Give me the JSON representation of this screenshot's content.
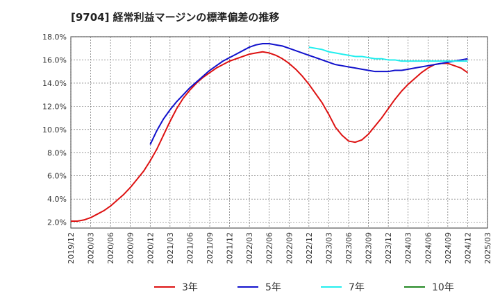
{
  "chart_data": {
    "type": "line",
    "title": "[9704]  経常利益マージンの標準偏差の推移",
    "xlabel": "",
    "ylabel": "",
    "ylim": [
      1.5,
      18.0
    ],
    "y_ticks": [
      "2.0%",
      "4.0%",
      "6.0%",
      "8.0%",
      "10.0%",
      "12.0%",
      "14.0%",
      "16.0%",
      "18.0%"
    ],
    "y_tick_values": [
      2,
      4,
      6,
      8,
      10,
      12,
      14,
      16,
      18
    ],
    "x_ticks": [
      "2019/12",
      "2020/03",
      "2020/06",
      "2020/09",
      "2020/12",
      "2021/03",
      "2021/06",
      "2021/09",
      "2021/12",
      "2022/03",
      "2022/06",
      "2022/09",
      "2022/12",
      "2023/03",
      "2023/06",
      "2023/09",
      "2023/12",
      "2024/03",
      "2024/06",
      "2024/09",
      "2024/12",
      "2025/03"
    ],
    "grid": true,
    "legend_position": "bottom",
    "series": [
      {
        "name": "3年",
        "color": "#dd1111",
        "points": [
          [
            "2019/12",
            2.1
          ],
          [
            "2020/01",
            2.1
          ],
          [
            "2020/02",
            2.2
          ],
          [
            "2020/03",
            2.4
          ],
          [
            "2020/04",
            2.7
          ],
          [
            "2020/05",
            3.0
          ],
          [
            "2020/06",
            3.4
          ],
          [
            "2020/07",
            3.9
          ],
          [
            "2020/08",
            4.4
          ],
          [
            "2020/09",
            5.0
          ],
          [
            "2020/10",
            5.7
          ],
          [
            "2020/11",
            6.4
          ],
          [
            "2020/12",
            7.3
          ],
          [
            "2021/01",
            8.3
          ],
          [
            "2021/02",
            9.5
          ],
          [
            "2021/03",
            10.7
          ],
          [
            "2021/04",
            11.8
          ],
          [
            "2021/05",
            12.7
          ],
          [
            "2021/06",
            13.4
          ],
          [
            "2021/07",
            14.0
          ],
          [
            "2021/08",
            14.5
          ],
          [
            "2021/09",
            14.9
          ],
          [
            "2021/10",
            15.3
          ],
          [
            "2021/11",
            15.6
          ],
          [
            "2021/12",
            15.9
          ],
          [
            "2022/01",
            16.1
          ],
          [
            "2022/02",
            16.3
          ],
          [
            "2022/03",
            16.5
          ],
          [
            "2022/04",
            16.6
          ],
          [
            "2022/05",
            16.7
          ],
          [
            "2022/06",
            16.6
          ],
          [
            "2022/07",
            16.4
          ],
          [
            "2022/08",
            16.1
          ],
          [
            "2022/09",
            15.7
          ],
          [
            "2022/10",
            15.2
          ],
          [
            "2022/11",
            14.6
          ],
          [
            "2022/12",
            13.9
          ],
          [
            "2023/01",
            13.1
          ],
          [
            "2023/02",
            12.3
          ],
          [
            "2023/03",
            11.3
          ],
          [
            "2023/04",
            10.2
          ],
          [
            "2023/05",
            9.5
          ],
          [
            "2023/06",
            9.0
          ],
          [
            "2023/07",
            8.9
          ],
          [
            "2023/08",
            9.1
          ],
          [
            "2023/09",
            9.6
          ],
          [
            "2023/10",
            10.3
          ],
          [
            "2023/11",
            11.0
          ],
          [
            "2023/12",
            11.8
          ],
          [
            "2024/01",
            12.6
          ],
          [
            "2024/02",
            13.3
          ],
          [
            "2024/03",
            13.9
          ],
          [
            "2024/04",
            14.4
          ],
          [
            "2024/05",
            14.9
          ],
          [
            "2024/06",
            15.3
          ],
          [
            "2024/07",
            15.6
          ],
          [
            "2024/08",
            15.7
          ],
          [
            "2024/09",
            15.7
          ],
          [
            "2024/10",
            15.5
          ],
          [
            "2024/11",
            15.3
          ],
          [
            "2024/12",
            14.9
          ]
        ]
      },
      {
        "name": "5年",
        "color": "#1111cc",
        "points": [
          [
            "2020/12",
            8.7
          ],
          [
            "2021/01",
            9.9
          ],
          [
            "2021/02",
            10.9
          ],
          [
            "2021/03",
            11.7
          ],
          [
            "2021/04",
            12.4
          ],
          [
            "2021/05",
            13.0
          ],
          [
            "2021/06",
            13.6
          ],
          [
            "2021/07",
            14.1
          ],
          [
            "2021/08",
            14.6
          ],
          [
            "2021/09",
            15.1
          ],
          [
            "2021/10",
            15.5
          ],
          [
            "2021/11",
            15.9
          ],
          [
            "2021/12",
            16.2
          ],
          [
            "2022/01",
            16.5
          ],
          [
            "2022/02",
            16.8
          ],
          [
            "2022/03",
            17.1
          ],
          [
            "2022/04",
            17.3
          ],
          [
            "2022/05",
            17.4
          ],
          [
            "2022/06",
            17.4
          ],
          [
            "2022/07",
            17.3
          ],
          [
            "2022/08",
            17.2
          ],
          [
            "2022/09",
            17.0
          ],
          [
            "2022/10",
            16.8
          ],
          [
            "2022/11",
            16.6
          ],
          [
            "2022/12",
            16.4
          ],
          [
            "2023/01",
            16.2
          ],
          [
            "2023/02",
            16.0
          ],
          [
            "2023/03",
            15.8
          ],
          [
            "2023/04",
            15.6
          ],
          [
            "2023/05",
            15.5
          ],
          [
            "2023/06",
            15.4
          ],
          [
            "2023/07",
            15.3
          ],
          [
            "2023/08",
            15.2
          ],
          [
            "2023/09",
            15.1
          ],
          [
            "2023/10",
            15.0
          ],
          [
            "2023/11",
            15.0
          ],
          [
            "2023/12",
            15.0
          ],
          [
            "2024/01",
            15.1
          ],
          [
            "2024/02",
            15.1
          ],
          [
            "2024/03",
            15.2
          ],
          [
            "2024/04",
            15.3
          ],
          [
            "2024/05",
            15.4
          ],
          [
            "2024/06",
            15.5
          ],
          [
            "2024/07",
            15.6
          ],
          [
            "2024/08",
            15.7
          ],
          [
            "2024/09",
            15.8
          ],
          [
            "2024/10",
            15.9
          ],
          [
            "2024/11",
            16.0
          ],
          [
            "2024/12",
            16.1
          ]
        ]
      },
      {
        "name": "7年",
        "color": "#22eeee",
        "points": [
          [
            "2022/12",
            17.1
          ],
          [
            "2023/01",
            17.0
          ],
          [
            "2023/02",
            16.9
          ],
          [
            "2023/03",
            16.7
          ],
          [
            "2023/04",
            16.6
          ],
          [
            "2023/05",
            16.5
          ],
          [
            "2023/06",
            16.4
          ],
          [
            "2023/07",
            16.3
          ],
          [
            "2023/08",
            16.3
          ],
          [
            "2023/09",
            16.2
          ],
          [
            "2023/10",
            16.1
          ],
          [
            "2023/11",
            16.1
          ],
          [
            "2023/12",
            16.0
          ],
          [
            "2024/01",
            16.0
          ],
          [
            "2024/02",
            15.9
          ],
          [
            "2024/03",
            15.9
          ],
          [
            "2024/04",
            15.9
          ],
          [
            "2024/05",
            15.9
          ],
          [
            "2024/06",
            15.9
          ],
          [
            "2024/07",
            15.9
          ],
          [
            "2024/08",
            15.9
          ],
          [
            "2024/09",
            15.9
          ],
          [
            "2024/10",
            15.9
          ],
          [
            "2024/11",
            15.9
          ],
          [
            "2024/12",
            15.9
          ]
        ]
      },
      {
        "name": "10年",
        "color": "#228822",
        "points": []
      }
    ]
  }
}
